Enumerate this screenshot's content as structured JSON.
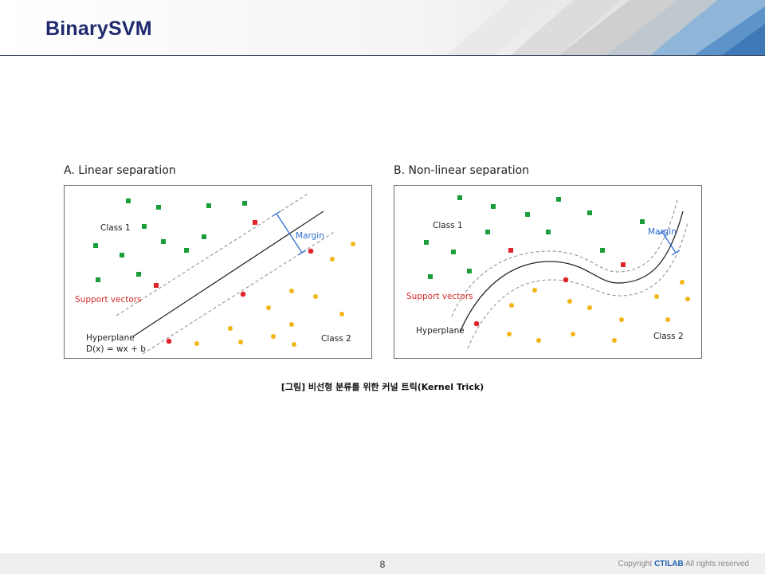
{
  "slide": {
    "title": "BinarySVM",
    "caption": "[그림] 비선형 분류를 위한 커널 트릭(Kernel Trick)",
    "page_number": "8",
    "copyright_prefix": "Copyright",
    "copyright_brand": "CTILAB",
    "copyright_suffix": "All rights reserved"
  },
  "panel_a": {
    "title": "A. Linear separation",
    "class1_label": "Class 1",
    "class2_label": "Class 2",
    "support_vectors_label": "Support vectors",
    "margin_label": "Margin",
    "hyperplane_label": "Hyperplane",
    "equation_label": "D(x) = wx + b"
  },
  "panel_b": {
    "title": "B. Non-linear separation",
    "class1_label": "Class 1",
    "class2_label": "Class 2",
    "support_vectors_label": "Support vectors",
    "margin_label": "Margin",
    "hyperplane_label": "Hyperplane"
  },
  "colors": {
    "class1": "#1a9e3a",
    "class2": "#f2b516",
    "support_vector": "#e0242a",
    "margin": "#2d6fd1",
    "title": "#1f2a6e"
  }
}
